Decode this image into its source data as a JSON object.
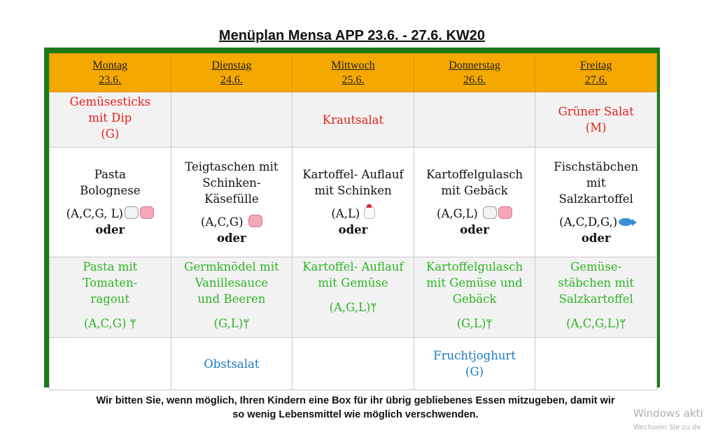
{
  "title": "Menüplan Mensa APP 23.6. - 27.6. KW20",
  "days": [
    {
      "name": "Montag",
      "date": "23.6."
    },
    {
      "name": "Dienstag",
      "date": "24.6."
    },
    {
      "name": "Mittwoch",
      "date": "25.6."
    },
    {
      "name": "Donnerstag",
      "date": "26.6."
    },
    {
      "name": "Freitag",
      "date": "27.6."
    }
  ],
  "starter": {
    "mon": [
      "Gemüsesticks",
      "mit Dip",
      "(G)"
    ],
    "wed": "Krautsalat",
    "fri": [
      "Grüner Salat",
      "(M)"
    ]
  },
  "main": {
    "mon": {
      "lines": [
        "Pasta",
        "Bolognese"
      ],
      "codes": "(A,C,G, L)",
      "icons": [
        "cow-icon",
        "pig-icon"
      ]
    },
    "tue": {
      "lines": [
        "Teigtaschen mit",
        "Schinken-",
        "Käsefülle"
      ],
      "codes": "(A,C,G)",
      "icons": [
        "pig-icon"
      ]
    },
    "wed": {
      "lines": [
        "Kartoffel- Auflauf",
        "mit Schinken"
      ],
      "codes": "(A,L)",
      "icons": [
        "chicken-icon"
      ]
    },
    "thu": {
      "lines": [
        "Kartoffelgulasch",
        "mit Gebäck"
      ],
      "codes": "(A,G,L)",
      "icons": [
        "cow-icon",
        "pig-icon"
      ]
    },
    "fri": {
      "lines": [
        "Fischstäbchen",
        "mit",
        "Salzkartoffel"
      ],
      "codes": "(A,C,D,G,)",
      "icons": [
        "fish-icon"
      ]
    }
  },
  "oder": "oder",
  "veggie": {
    "mon": {
      "lines": [
        "Pasta mit",
        "Tomaten-",
        "ragout"
      ],
      "codes": "(A,C,G)"
    },
    "tue": {
      "lines": [
        "Germknödel mit",
        "Vanillesauce",
        "und Beeren"
      ],
      "codes": "(G,L)"
    },
    "wed": {
      "lines": [
        "Kartoffel- Auflauf",
        "mit Gemüse"
      ],
      "codes": "(A,G,L)"
    },
    "thu": {
      "lines": [
        "Kartoffelgulasch",
        "mit Gemüse und",
        "Gebäck"
      ],
      "codes": "(G,L)"
    },
    "fri": {
      "lines": [
        "Gemüse-",
        "stäbchen mit",
        "Salzkartoffel"
      ],
      "codes": "(A,C,G,L)"
    }
  },
  "dessert": {
    "tue": "Obstsalat",
    "thu": [
      "Fruchtjoghurt",
      "(G)"
    ]
  },
  "footer": {
    "line1": "Wir bitten Sie, wenn möglich, Ihren Kindern eine Box für ihr übrig gebliebenes Essen mitzugeben, damit wir",
    "line2": "so wenig Lebensmittel wie möglich verschwenden."
  },
  "watermark": {
    "line1": "Windows aktiv",
    "line2": "Wechseln Sie zu de"
  },
  "colors": {
    "header": "#f5a800",
    "frame": "#1a7a1a",
    "starter": "#e3201b",
    "veggie": "#2db324",
    "dessert": "#1a7ac2"
  }
}
